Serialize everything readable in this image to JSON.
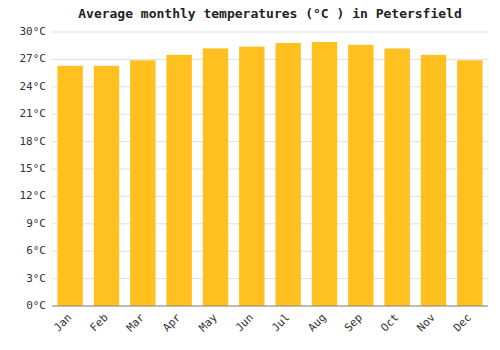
{
  "chart_data": {
    "type": "bar",
    "title": "Average monthly temperatures (°C ) in Petersfield",
    "categories": [
      "Jan",
      "Feb",
      "Mar",
      "Apr",
      "May",
      "Jun",
      "Jul",
      "Aug",
      "Sep",
      "Oct",
      "Nov",
      "Dec"
    ],
    "values": [
      26.3,
      26.3,
      26.9,
      27.5,
      28.2,
      28.4,
      28.8,
      28.9,
      28.6,
      28.2,
      27.5,
      26.9
    ],
    "color": "#FFC020",
    "ylim": [
      0,
      30
    ],
    "yticks": [
      {
        "value": 0,
        "label": "0°C"
      },
      {
        "value": 3,
        "label": "3°C"
      },
      {
        "value": 6,
        "label": "6°C"
      },
      {
        "value": 9,
        "label": "9°C"
      },
      {
        "value": 12,
        "label": "12°C"
      },
      {
        "value": 15,
        "label": "15°C"
      },
      {
        "value": 18,
        "label": "18°C"
      },
      {
        "value": 21,
        "label": "21°C"
      },
      {
        "value": 24,
        "label": "24°C"
      },
      {
        "value": 27,
        "label": "27°C"
      },
      {
        "value": 30,
        "label": "30°C"
      }
    ],
    "grid": true
  }
}
